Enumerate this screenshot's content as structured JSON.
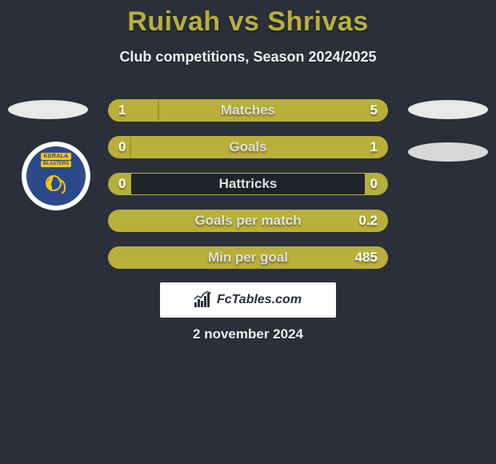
{
  "title": "Ruivah vs Shrivas",
  "subtitle": "Club competitions, Season 2024/2025",
  "date": "2 november 2024",
  "branding": "FcTables.com",
  "colors": {
    "accent": "#b8b03a",
    "background": "#2a2f3a",
    "text_light": "#f0f0f0",
    "club_blue": "#2a4a8a",
    "club_yellow": "#f5c518"
  },
  "club_badge": {
    "line1": "KERALA",
    "line2": "BLASTERS"
  },
  "stats": [
    {
      "label": "Matches",
      "left_value": "1",
      "right_value": "5",
      "left_fill_pct": 18,
      "right_fill_pct": 0,
      "full_right_bg": true
    },
    {
      "label": "Goals",
      "left_value": "0",
      "right_value": "1",
      "left_fill_pct": 8,
      "right_fill_pct": 0,
      "full_right_bg": true
    },
    {
      "label": "Hattricks",
      "left_value": "0",
      "right_value": "0",
      "left_fill_pct": 8,
      "right_fill_pct": 8,
      "full_right_bg": false
    },
    {
      "label": "Goals per match",
      "left_value": "",
      "right_value": "0.2",
      "left_fill_pct": 0,
      "right_fill_pct": 0,
      "full_right_bg": true
    },
    {
      "label": "Min per goal",
      "left_value": "",
      "right_value": "485",
      "left_fill_pct": 0,
      "right_fill_pct": 0,
      "full_right_bg": true
    }
  ]
}
